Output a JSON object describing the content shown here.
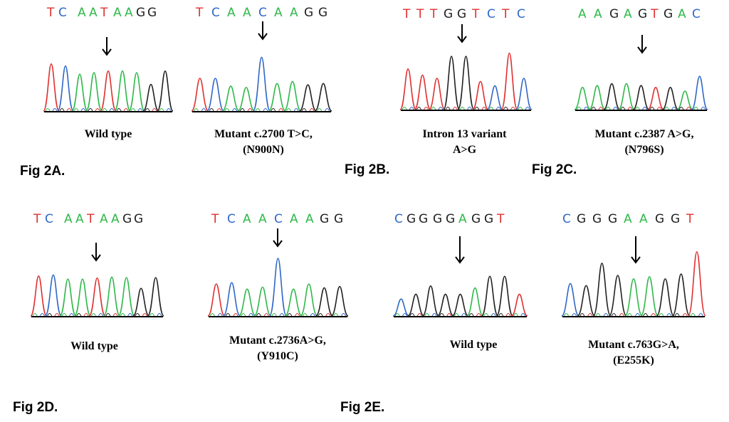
{
  "colors": {
    "A": "#2fb84a",
    "C": "#2f68c8",
    "G": "#222222",
    "T": "#e03030",
    "baseline": "#000000",
    "arrow": "#000000"
  },
  "figure_labels": {
    "fig2a": "Fig 2A.",
    "fig2b": "Fig 2B.",
    "fig2c": "Fig 2C.",
    "fig2d": "Fig 2D.",
    "fig2e": "Fig 2E."
  },
  "panels": [
    {
      "id": "2A-wt",
      "sequence": [
        "T",
        "C",
        "A",
        "A",
        "T",
        "A",
        "A",
        "G",
        "G"
      ],
      "caption": [
        "Wild type"
      ]
    },
    {
      "id": "2A-mut",
      "sequence": [
        "T",
        "C",
        "A",
        "A",
        "C",
        "A",
        "A",
        "G",
        "G"
      ],
      "caption": [
        "Mutant c.2700 T>C,",
        "(N900N)"
      ]
    },
    {
      "id": "2B",
      "sequence": [
        "T",
        "T",
        "T",
        "G",
        "G",
        "T",
        "C",
        "T",
        "C"
      ],
      "caption": [
        "Intron 13 variant",
        "A>G"
      ]
    },
    {
      "id": "2C",
      "sequence": [
        "A",
        "A",
        "G",
        "A",
        "G",
        "T",
        "G",
        "A",
        "C"
      ],
      "caption": [
        "Mutant c.2387 A>G,",
        "(N796S)"
      ]
    },
    {
      "id": "2D-wt",
      "sequence": [
        "T",
        "C",
        "A",
        "A",
        "T",
        "A",
        "A",
        "G",
        "G"
      ],
      "caption": [
        "Wild type"
      ]
    },
    {
      "id": "2D-mut",
      "sequence": [
        "T",
        "C",
        "A",
        "A",
        "C",
        "A",
        "A",
        "G",
        "G"
      ],
      "caption": [
        "Mutant c.2736A>G,",
        "(Y910C)"
      ]
    },
    {
      "id": "2E-wt",
      "sequence": [
        "C",
        "G",
        "G",
        "G",
        "G",
        "A",
        "G",
        "G",
        "T"
      ],
      "caption": [
        "Wild type"
      ]
    },
    {
      "id": "2E-mut",
      "sequence": [
        "C",
        "G",
        "G",
        "G",
        "A",
        "A",
        "G",
        "G",
        "T"
      ],
      "caption": [
        "Mutant c.763G>A,",
        "(E255K)"
      ]
    }
  ]
}
